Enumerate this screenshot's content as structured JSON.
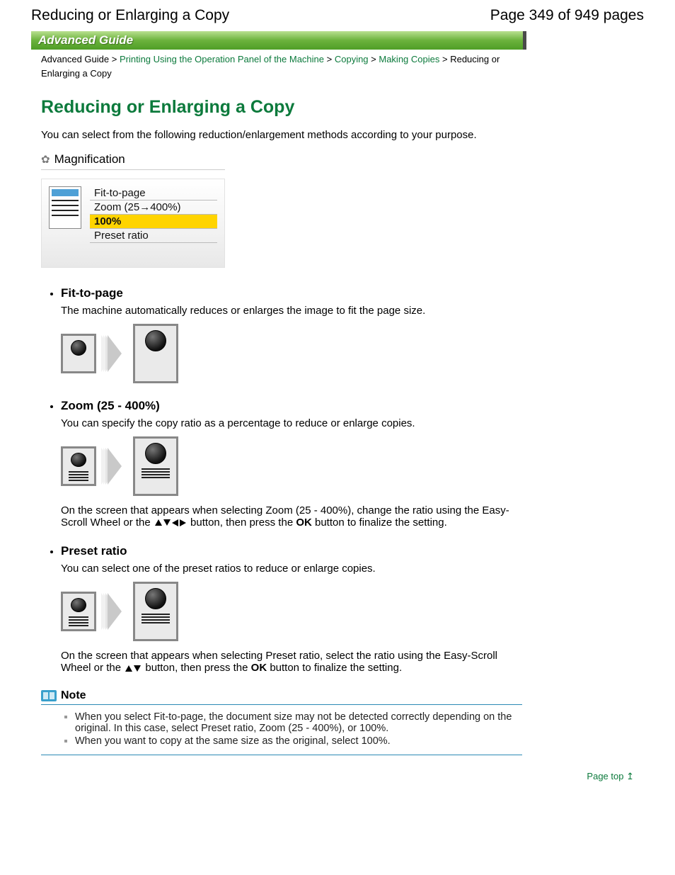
{
  "header": {
    "title": "Reducing or Enlarging a Copy",
    "page_info": "Page 349 of 949 pages"
  },
  "banner": {
    "text": "Advanced Guide"
  },
  "breadcrumb": {
    "items": [
      {
        "label": "Advanced Guide",
        "link": false
      },
      {
        "label": "Printing Using the Operation Panel of the Machine",
        "link": true
      },
      {
        "label": "Copying",
        "link": true
      },
      {
        "label": "Making Copies",
        "link": true
      },
      {
        "label": "Reducing or Enlarging a Copy",
        "link": false
      }
    ],
    "sep": " > "
  },
  "title": "Reducing or Enlarging a Copy",
  "intro": "You can select from the following reduction/enlargement methods according to your purpose.",
  "magnification": {
    "label": "Magnification",
    "options": [
      "Fit-to-page",
      "Zoom (25→400%)",
      "100%",
      "Preset ratio"
    ],
    "selected": "100%"
  },
  "features": [
    {
      "title": "Fit-to-page",
      "desc": "The machine automatically reduces or enlarges the image to fit the page size.",
      "variant": "ball",
      "extra": null
    },
    {
      "title": "Zoom (25 - 400%)",
      "desc": "You can specify the copy ratio as a percentage to reduce or enlarge copies.",
      "variant": "doc",
      "extra": {
        "pre": "On the screen that appears when selecting Zoom (25 - 400%), change the ratio using the Easy-Scroll Wheel or the ",
        "arrows4": true,
        "mid": " button, then press the ",
        "ok": "OK",
        "post": " button to finalize the setting."
      }
    },
    {
      "title": "Preset ratio",
      "desc": "You can select one of the preset ratios to reduce or enlarge copies.",
      "variant": "doc",
      "extra": {
        "pre": "On the screen that appears when selecting Preset ratio, select the ratio using the Easy-Scroll Wheel or the ",
        "arrows4": false,
        "mid": " button, then press the ",
        "ok": "OK",
        "post": " button to finalize the setting."
      }
    }
  ],
  "note": {
    "heading": "Note",
    "items": [
      "When you select Fit-to-page, the document size may not be detected correctly depending on the original. In this case, select Preset ratio, Zoom (25 - 400%), or 100%.",
      "When you want to copy at the same size as the original, select 100%."
    ]
  },
  "page_top": {
    "label": "Page top"
  },
  "colors": {
    "link_green": "#0c7a3c",
    "highlight_yellow": "#ffd400",
    "note_blue": "#2b8ab5"
  }
}
